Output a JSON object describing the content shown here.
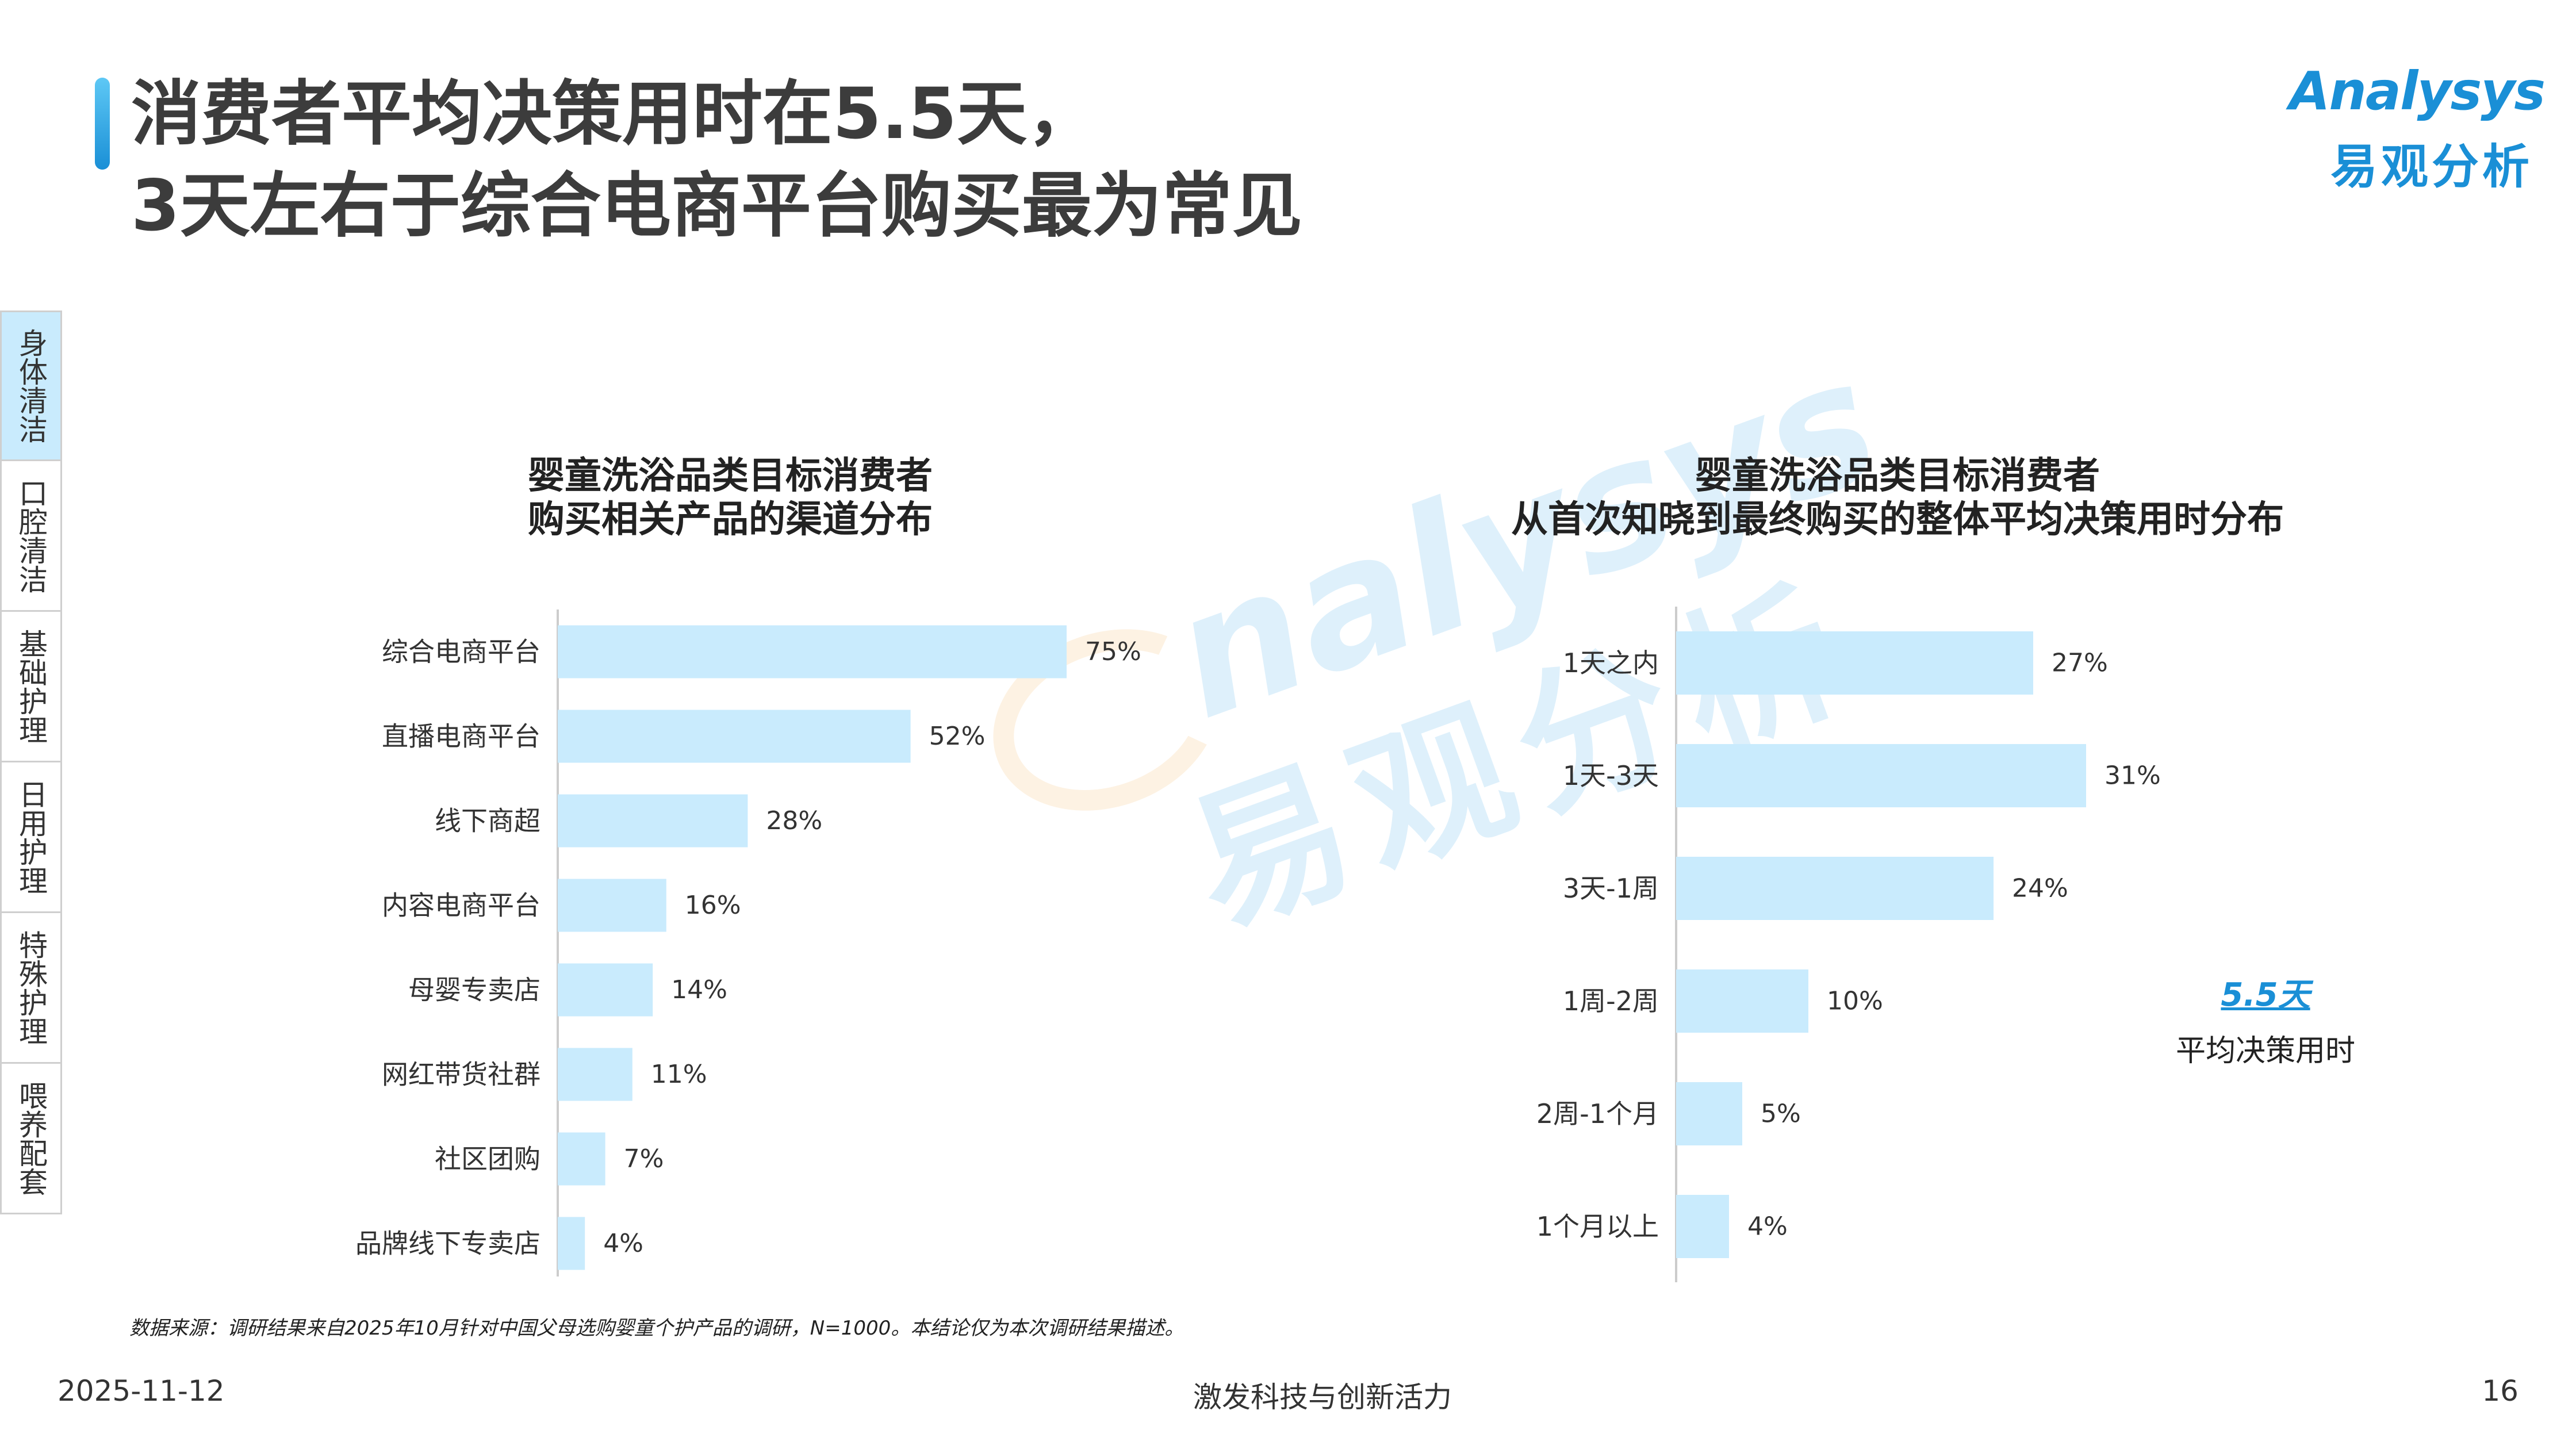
{
  "header": {
    "title_line1": "消费者平均决策用时在5.5天，",
    "title_line2": "3天左右于综合电商平台购买最为常见"
  },
  "logo": {
    "en": "Analysys",
    "zh": "易观分析"
  },
  "side_tabs": [
    {
      "label": "身体清洁",
      "active": true
    },
    {
      "label": "口腔清洁",
      "active": false
    },
    {
      "label": "基础护理",
      "active": false
    },
    {
      "label": "日用护理",
      "active": false
    },
    {
      "label": "特殊护理",
      "active": false
    },
    {
      "label": "喂养配套",
      "active": false
    }
  ],
  "watermark": {
    "en": "nalysys",
    "zh": "易观分析"
  },
  "colors": {
    "bar": "#c9ebfd",
    "accent": "#1a8fd6",
    "axis": "#cccccc"
  },
  "chart_data": [
    {
      "type": "bar",
      "orientation": "horizontal",
      "title_line1": "婴童洗浴品类目标消费者",
      "title_line2": "购买相关产品的渠道分布",
      "categories": [
        "综合电商平台",
        "直播电商平台",
        "线下商超",
        "内容电商平台",
        "母婴专卖店",
        "网红带货社群",
        "社区团购",
        "品牌线下专卖店"
      ],
      "values": [
        75,
        52,
        28,
        16,
        14,
        11,
        7,
        4
      ],
      "value_labels": [
        "75%",
        "52%",
        "28%",
        "16%",
        "14%",
        "11%",
        "7%",
        "4%"
      ],
      "xlim": [
        0,
        100
      ],
      "grid": false
    },
    {
      "type": "bar",
      "orientation": "horizontal",
      "title_line1": "婴童洗浴品类目标消费者",
      "title_line2": "从首次知晓到最终购买的整体平均决策用时分布",
      "categories": [
        "1天之内",
        "1天-3天",
        "3天-1周",
        "1周-2周",
        "2周-1个月",
        "1个月以上"
      ],
      "values": [
        27,
        31,
        24,
        10,
        5,
        4
      ],
      "value_labels": [
        "27%",
        "31%",
        "24%",
        "10%",
        "5%",
        "4%"
      ],
      "xlim": [
        0,
        40
      ],
      "grid": false,
      "annotation": {
        "value": "5.5天",
        "label": "平均决策用时"
      }
    }
  ],
  "footer": {
    "source": "数据来源：调研结果来自2025年10月针对中国父母选购婴童个护产品的调研，N=1000。本结论仅为本次调研结果描述。",
    "date": "2025-11-12",
    "slogan": "激发科技与创新活力",
    "page": "16"
  }
}
